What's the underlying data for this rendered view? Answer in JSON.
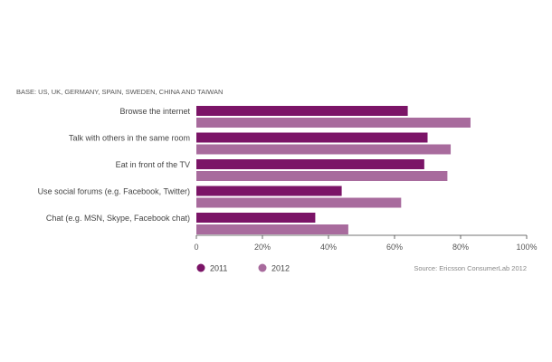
{
  "chart_data": {
    "type": "bar",
    "orientation": "horizontal",
    "note": "BASE: US, UK, GERMANY, SPAIN, SWEDEN, CHINA AND TAIWAN",
    "categories": [
      "Browse the internet",
      "Talk with others in the same room",
      "Eat in front of the TV",
      "Use social forums (e.g. Facebook, Twitter)",
      "Chat (e.g. MSN, Skype, Facebook chat)"
    ],
    "series": [
      {
        "name": "2011",
        "color": "#7b1467",
        "values": [
          64,
          70,
          69,
          44,
          36
        ]
      },
      {
        "name": "2012",
        "color": "#a86b9d",
        "values": [
          83,
          77,
          76,
          62,
          46
        ]
      }
    ],
    "xlim": [
      0,
      100
    ],
    "xticks": [
      0,
      20,
      40,
      60,
      80,
      100
    ],
    "xtick_labels": [
      "0",
      "20%",
      "40%",
      "60%",
      "80%",
      "100%"
    ],
    "grid": false,
    "legend_position": "bottom-left",
    "source": "Source: Ericsson ConsumerLab 2012"
  }
}
